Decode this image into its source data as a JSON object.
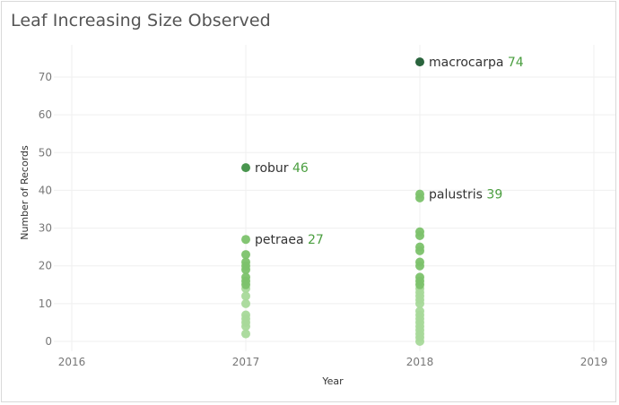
{
  "chart_data": {
    "type": "scatter",
    "title": "Leaf Increasing Size Observed",
    "xlabel": "Year",
    "ylabel": "Number of Records",
    "x_ticks": [
      "2016",
      "2017",
      "2018",
      "2019"
    ],
    "y_ticks": [
      "0",
      "10",
      "20",
      "30",
      "40",
      "50",
      "60",
      "70"
    ],
    "xlim": [
      2016,
      2019
    ],
    "ylim": [
      0,
      75
    ],
    "grid": true,
    "colors": {
      "light": "#a8d99a",
      "mid": "#7cc26c",
      "dark": "#3f8f45",
      "darkest": "#1f5c33",
      "value_text": "#4a9e3f"
    },
    "points": [
      {
        "year": 2017,
        "value": 2
      },
      {
        "year": 2017,
        "value": 4
      },
      {
        "year": 2017,
        "value": 5
      },
      {
        "year": 2017,
        "value": 6
      },
      {
        "year": 2017,
        "value": 7
      },
      {
        "year": 2017,
        "value": 10
      },
      {
        "year": 2017,
        "value": 12
      },
      {
        "year": 2017,
        "value": 14
      },
      {
        "year": 2017,
        "value": 15
      },
      {
        "year": 2017,
        "value": 16
      },
      {
        "year": 2017,
        "value": 17
      },
      {
        "year": 2017,
        "value": 19
      },
      {
        "year": 2017,
        "value": 20
      },
      {
        "year": 2017,
        "value": 21
      },
      {
        "year": 2017,
        "value": 23
      },
      {
        "year": 2017,
        "value": 27,
        "label": "petraea"
      },
      {
        "year": 2017,
        "value": 46,
        "label": "robur"
      },
      {
        "year": 2018,
        "value": 0
      },
      {
        "year": 2018,
        "value": 1
      },
      {
        "year": 2018,
        "value": 2
      },
      {
        "year": 2018,
        "value": 3
      },
      {
        "year": 2018,
        "value": 4
      },
      {
        "year": 2018,
        "value": 5
      },
      {
        "year": 2018,
        "value": 6
      },
      {
        "year": 2018,
        "value": 7
      },
      {
        "year": 2018,
        "value": 8
      },
      {
        "year": 2018,
        "value": 10
      },
      {
        "year": 2018,
        "value": 11
      },
      {
        "year": 2018,
        "value": 12
      },
      {
        "year": 2018,
        "value": 13
      },
      {
        "year": 2018,
        "value": 14
      },
      {
        "year": 2018,
        "value": 15
      },
      {
        "year": 2018,
        "value": 16
      },
      {
        "year": 2018,
        "value": 17
      },
      {
        "year": 2018,
        "value": 20
      },
      {
        "year": 2018,
        "value": 21
      },
      {
        "year": 2018,
        "value": 24
      },
      {
        "year": 2018,
        "value": 25
      },
      {
        "year": 2018,
        "value": 28
      },
      {
        "year": 2018,
        "value": 29
      },
      {
        "year": 2018,
        "value": 38
      },
      {
        "year": 2018,
        "value": 39,
        "label": "palustris"
      },
      {
        "year": 2018,
        "value": 74,
        "label": "macrocarpa"
      }
    ]
  }
}
